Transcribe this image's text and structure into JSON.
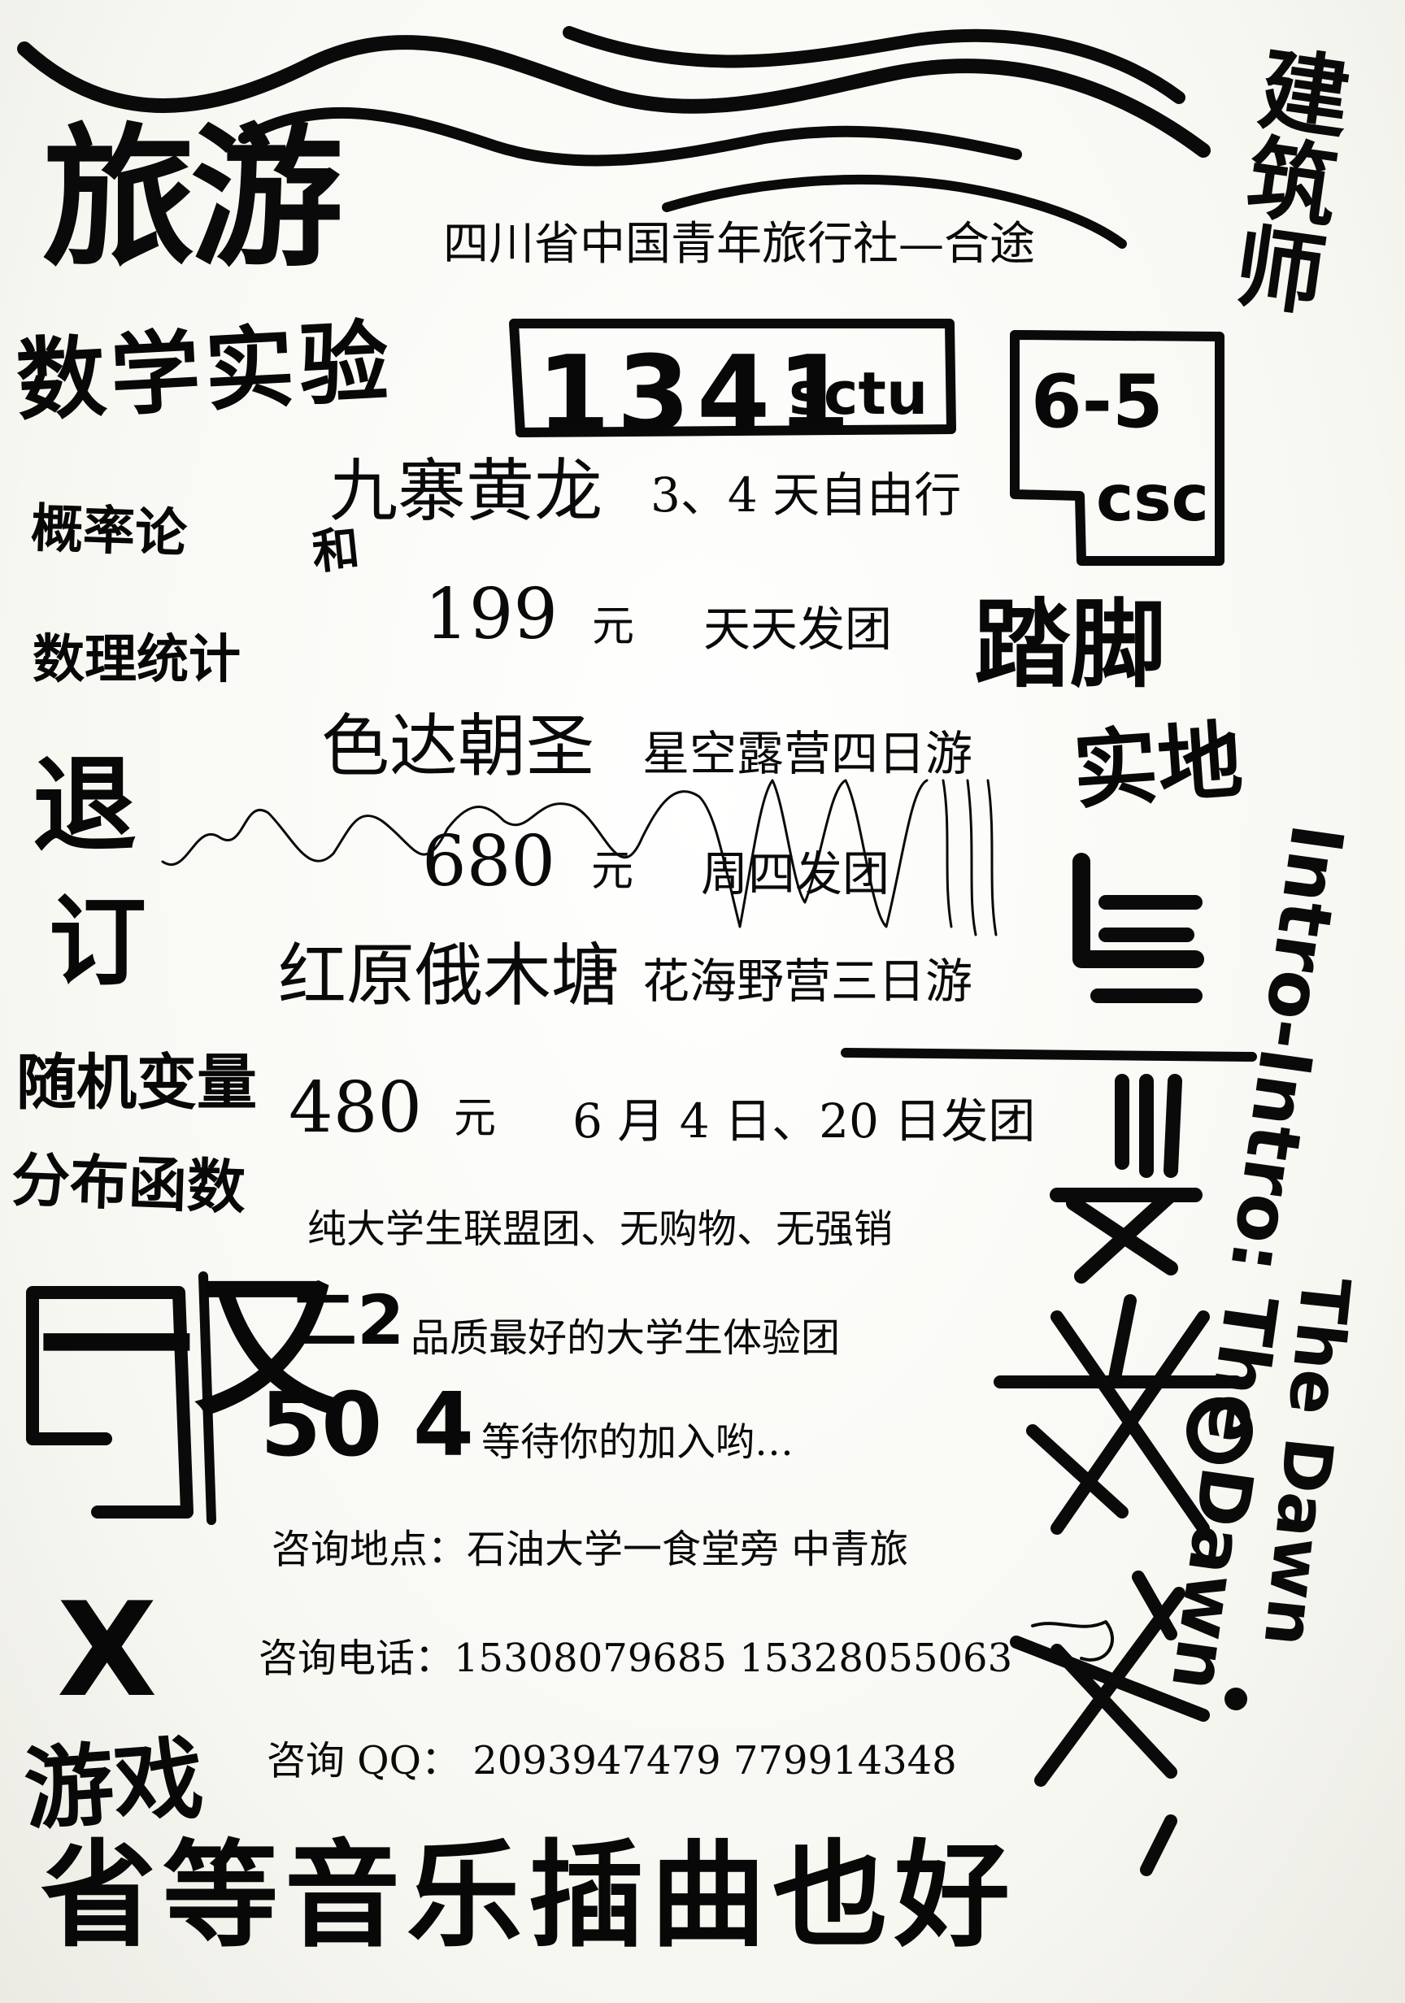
{
  "poster": {
    "brand": "旅游",
    "agency": "四川省中国青年旅行社—合途",
    "tours": [
      {
        "name": "九寨黄龙",
        "subtitle": "3、4 天自由行",
        "price": "199",
        "unit": "元",
        "schedule": "天天发团"
      },
      {
        "name": "色达朝圣",
        "subtitle": "星空露营四日游",
        "price": "680",
        "unit": "元",
        "schedule": "周四发团"
      },
      {
        "name": "红原俄木塘",
        "subtitle": "花海野营三日游",
        "price": "480",
        "unit": "元",
        "schedule": "6 月 4 日、20 日发团"
      }
    ],
    "features": [
      "纯大学生联盟团、无购物、无强销",
      "品质最好的大学生体验团",
      "等待你的加入哟…"
    ],
    "contact": {
      "location": "咨询地点：石油大学一食堂旁  中青旅",
      "phone": "咨询电话：15308079685   15328055063",
      "qq": "咨询 QQ：  2093947479     779914348"
    }
  },
  "handwriting": {
    "math_experiment": "数学实验",
    "course1": "概率论",
    "he": "和",
    "course2": "数理统计",
    "tui": "退",
    "ding": "订",
    "random_variable": "随机变量",
    "distribution": "分布函数",
    "code": "1341",
    "code_suffix": "sctu",
    "box2_top": "6-5",
    "box2_bottom": "csc",
    "tajiao": "踏脚",
    "shidi": "实地",
    "architect": "建筑师",
    "intro": "Intro-Intro: The Dawn",
    "the_dawn": "The Dawn",
    "nn": "一又",
    "nums1": "二2",
    "nums2": "50 4",
    "x2": "X",
    "youxi": "游戏",
    "bottom_line": "省等音乐插曲也好"
  }
}
